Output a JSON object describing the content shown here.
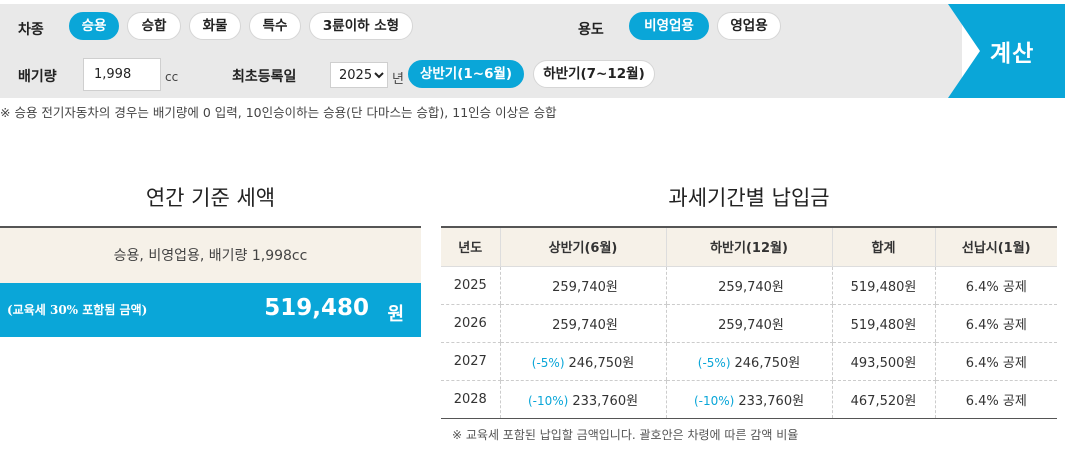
{
  "filter": {
    "car_type_label": "차종",
    "car_types": [
      {
        "label": "승용",
        "active": true
      },
      {
        "label": "승합",
        "active": false
      },
      {
        "label": "화물",
        "active": false
      },
      {
        "label": "특수",
        "active": false
      },
      {
        "label": "3륜이하 소형",
        "active": false
      }
    ],
    "usage_label": "용도",
    "usages": [
      {
        "label": "비영업용",
        "active": true
      },
      {
        "label": "영업용",
        "active": false
      }
    ],
    "displacement_label": "배기량",
    "displacement_value": "1,998",
    "displacement_unit": "cc",
    "first_reg_label": "최초등록일",
    "year_value": "2025",
    "year_unit": "년",
    "halves": [
      {
        "label": "상반기(1~6월)",
        "active": true
      },
      {
        "label": "하반기(7~12월)",
        "active": false
      }
    ],
    "calculate_label": "계산",
    "note": "※ 승용 전기자동차의 경우는 배기량에 0 입력, 10인승이하는 승용(단 다마스는 승합), 11인승 이상은 승합"
  },
  "annual": {
    "title": "연간 기준 세액",
    "desc": "승용, 비영업용, 배기량 1,998cc",
    "caption": "(교육세 30% 포함됨 금액)",
    "amount": "519,480",
    "unit": "원"
  },
  "period": {
    "title": "과세기간별 납입금",
    "headers": [
      "년도",
      "상반기(6월)",
      "하반기(12월)",
      "합계",
      "선납시(1월)"
    ],
    "rows": [
      {
        "year": "2025",
        "first_disc": "",
        "first": "259,740원",
        "second_disc": "",
        "second": "259,740원",
        "total": "519,480원",
        "prepay": "6.4% 공제"
      },
      {
        "year": "2026",
        "first_disc": "",
        "first": "259,740원",
        "second_disc": "",
        "second": "259,740원",
        "total": "519,480원",
        "prepay": "6.4% 공제"
      },
      {
        "year": "2027",
        "first_disc": "(-5%)",
        "first": "246,750원",
        "second_disc": "(-5%)",
        "second": "246,750원",
        "total": "493,500원",
        "prepay": "6.4% 공제"
      },
      {
        "year": "2028",
        "first_disc": "(-10%)",
        "first": "233,760원",
        "second_disc": "(-10%)",
        "second": "233,760원",
        "total": "467,520원",
        "prepay": "6.4% 공제"
      }
    ],
    "footnote": "※ 교육세 포함된 납입할 금액입니다. 괄호안은 차령에 따른 감액 비율"
  },
  "colors": {
    "accent": "#0aa6d8",
    "panel": "#e9e9e9",
    "header_bg": "#f6f1e8"
  }
}
